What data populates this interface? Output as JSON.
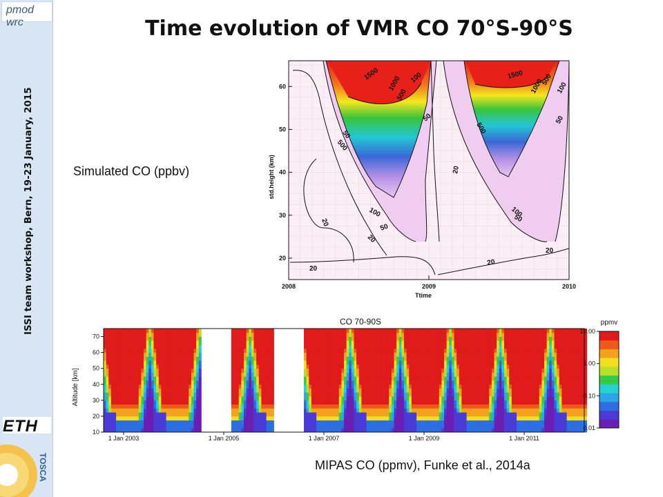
{
  "header": {
    "title": "Time evolution of VMR CO 70°S-90°S"
  },
  "sidebar": {
    "logo_text": "pmod wrc",
    "workshop_text": "ISSI team workshop, Bern, 19-23 January, 2015",
    "eth_logo": "ETH",
    "tosca_logo": "TOSCA"
  },
  "labels": {
    "simulated": "Simulated CO (ppbv)",
    "mipas": "MIPAS CO (ppmv), Funke et al., 2014a"
  },
  "chart_data": [
    {
      "type": "contour",
      "title": "",
      "xlabel": "Ttime",
      "ylabel": "std.height (km)",
      "x_tick_labels": [
        "2008",
        "2009",
        "2010"
      ],
      "y_tick_labels": [
        "20",
        "30",
        "40",
        "50",
        "60"
      ],
      "xlim": [
        2008,
        2010
      ],
      "ylim": [
        15,
        66
      ],
      "contour_levels": [
        20,
        50,
        100,
        500,
        1000,
        1500
      ],
      "contour_labels": [
        "1500",
        "1000",
        "500",
        "100",
        "500",
        "50",
        "50",
        "20",
        "20",
        "100",
        "20",
        "50",
        "20",
        "1500",
        "1000",
        "500",
        "100",
        "500",
        "50",
        "20",
        "100",
        "50",
        "20"
      ],
      "units": "ppbv"
    },
    {
      "type": "heatmap",
      "title": "CO 70-90S",
      "ylabel": "Altitude [km]",
      "x_tick_labels": [
        "1 Jan 2003",
        "1 Jan 2005",
        "1 Jan 2007",
        "1 Jan 2009",
        "1 Jan 2011"
      ],
      "y_tick_labels": [
        "10",
        "20",
        "30",
        "40",
        "50",
        "60",
        "70"
      ],
      "xlim": [
        2002.6,
        2012.2
      ],
      "ylim": [
        10,
        75
      ],
      "colorbar": {
        "label": "ppmv",
        "tick_labels": [
          "10.00",
          "1.00",
          "0.10",
          "0.01"
        ]
      }
    }
  ]
}
